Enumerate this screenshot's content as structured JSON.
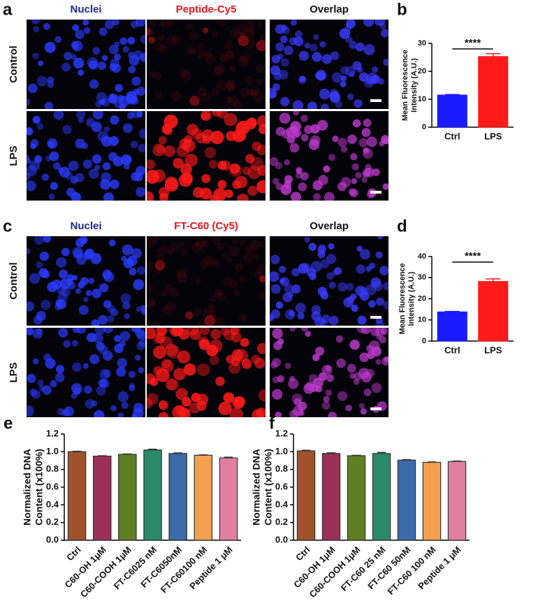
{
  "panels": [
    {
      "letter": "a",
      "columns": [
        "Nuclei",
        "Peptide-Cy5",
        "Overlap"
      ],
      "header_colors": [
        "#1a2a8c",
        "#e8141c",
        "#111111"
      ],
      "rows": [
        "Control",
        "LPS"
      ]
    },
    {
      "letter": "c",
      "columns": [
        "Nuclei",
        "FT-C60 (Cy5)",
        "Overlap"
      ],
      "header_colors": [
        "#1a2a8c",
        "#e8141c",
        "#111111"
      ],
      "rows": [
        "Control",
        "LPS"
      ]
    }
  ],
  "chart_data": [
    {
      "type": "bar",
      "panel": "b",
      "ylabel": [
        "Mean Fluorescence",
        "Intensity (A.U.)"
      ],
      "categories": [
        "Ctrl",
        "LPS"
      ],
      "values": [
        11.5,
        25.3
      ],
      "errors": [
        0.2,
        1.0
      ],
      "colors": [
        "#1a1aff",
        "#ff1a1a"
      ],
      "ylim": [
        0,
        30
      ],
      "yticks": [
        0,
        10,
        20,
        30
      ],
      "annotation": "****"
    },
    {
      "type": "bar",
      "panel": "d",
      "ylabel": [
        "Mean Fluorescence",
        "Intensity (A.U.)"
      ],
      "categories": [
        "Ctrl",
        "LPS"
      ],
      "values": [
        13.8,
        28.2
      ],
      "errors": [
        0.2,
        1.2
      ],
      "colors": [
        "#1a1aff",
        "#ff1a1a"
      ],
      "ylim": [
        0,
        40
      ],
      "yticks": [
        0,
        10,
        20,
        30,
        40
      ],
      "annotation": "****"
    },
    {
      "type": "bar",
      "panel": "e",
      "ylabel": [
        "Normalized DNA",
        "Content (x100%)"
      ],
      "categories": [
        "Ctrl",
        "C60-OH 1μM",
        "C60-COOH 1μM",
        "FT-C6025 nM",
        "FT-C6050nM",
        "FT-C60100 nM",
        "Peptide 1 μM"
      ],
      "values": [
        1.0,
        0.95,
        0.97,
        1.02,
        0.98,
        0.96,
        0.93
      ],
      "errors": [
        0.005,
        0.004,
        0.004,
        0.008,
        0.006,
        0.004,
        0.008
      ],
      "colors": [
        "#a0522d",
        "#9b2f55",
        "#5f7f22",
        "#2a8a6a",
        "#3d6aa8",
        "#f5a050",
        "#e07fa0"
      ],
      "ylim": [
        0,
        1.2
      ],
      "yticks": [
        {
          "value": 0,
          "label": "0.0"
        },
        0.2,
        0.4,
        0.6,
        0.8,
        {
          "value": 1,
          "label": "1.0"
        },
        1.2
      ]
    },
    {
      "type": "bar",
      "panel": "f",
      "ylabel": [
        "Normalized DNA",
        "Content (x100%)"
      ],
      "categories": [
        "Ctrl",
        "C60-OH 1μM",
        "C60-COOH 1μM",
        "FT-C60 25 nM",
        "FT-C60 50nM",
        "FT-C60 100 nM",
        "Peptide 1 μM"
      ],
      "values": [
        1.01,
        0.98,
        0.955,
        0.98,
        0.905,
        0.88,
        0.89
      ],
      "errors": [
        0.006,
        0.007,
        0.004,
        0.012,
        0.005,
        0.004,
        0.004
      ],
      "colors": [
        "#a0522d",
        "#9b2f55",
        "#5f7f22",
        "#2a8a6a",
        "#3d6aa8",
        "#f5a050",
        "#e07fa0"
      ],
      "ylim": [
        0,
        1.2
      ],
      "yticks": [
        {
          "value": 0,
          "label": "0.0"
        },
        0.2,
        0.4,
        0.6,
        0.8,
        {
          "value": 1,
          "label": "1.0"
        },
        1.2
      ]
    }
  ]
}
